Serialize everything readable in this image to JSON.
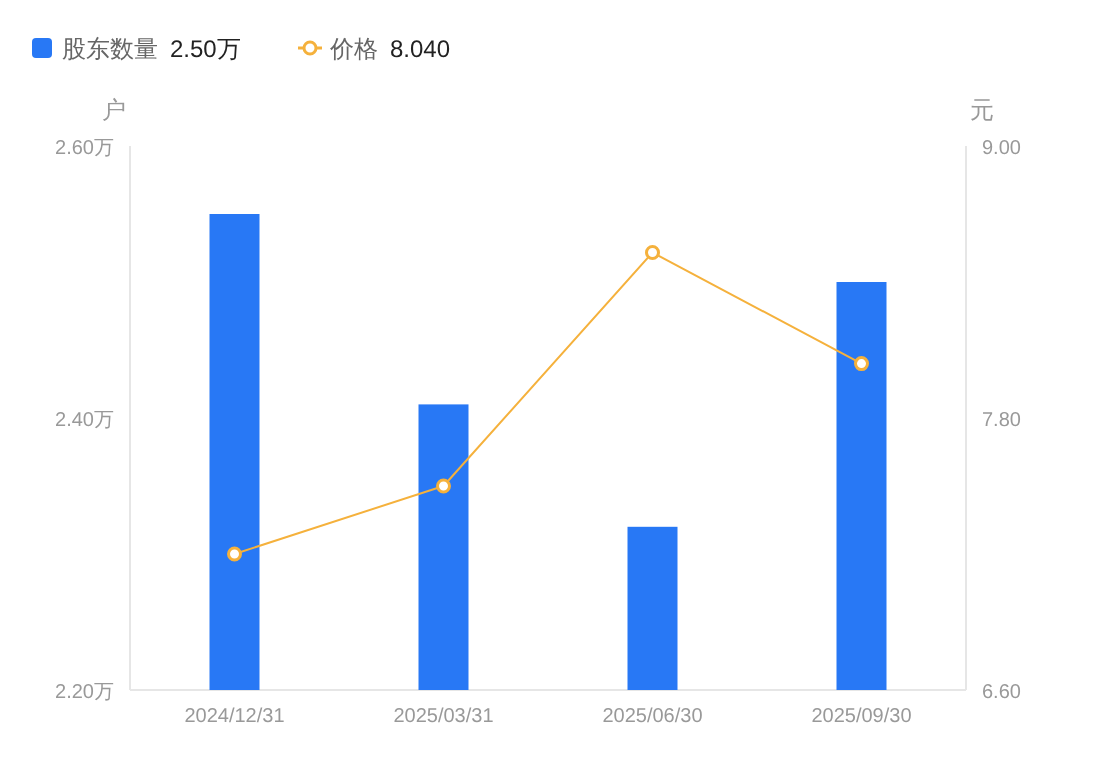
{
  "chart_data": {
    "type": "bar",
    "categories": [
      "2024/12/31",
      "2025/03/31",
      "2025/06/30",
      "2025/09/30"
    ],
    "series": [
      {
        "name": "股东数量",
        "color": "#2878f5",
        "values": [
          2.55,
          2.41,
          2.32,
          2.5
        ]
      },
      {
        "name": "价格",
        "type": "line",
        "axis": "y2",
        "color": "#f5b13c",
        "values": [
          7.2,
          7.5,
          8.53,
          8.04
        ],
        "marker": "circle"
      }
    ],
    "ylabel": "户",
    "y2label": "元",
    "ylim": [
      2.2,
      2.6
    ],
    "yticks": [
      {
        "value": 2.2,
        "label": "2.20万"
      },
      {
        "value": 2.4,
        "label": "2.40万"
      },
      {
        "value": 2.6,
        "label": "2.60万"
      }
    ],
    "y2lim": [
      6.6,
      9.0
    ],
    "y2ticks": [
      {
        "value": 6.6,
        "label": "6.60"
      },
      {
        "value": 7.8,
        "label": "7.80"
      },
      {
        "value": 9.0,
        "label": "9.00"
      }
    ],
    "annotations": [
      "2.50万",
      "8.040"
    ],
    "legend": "top left",
    "grid": false
  }
}
